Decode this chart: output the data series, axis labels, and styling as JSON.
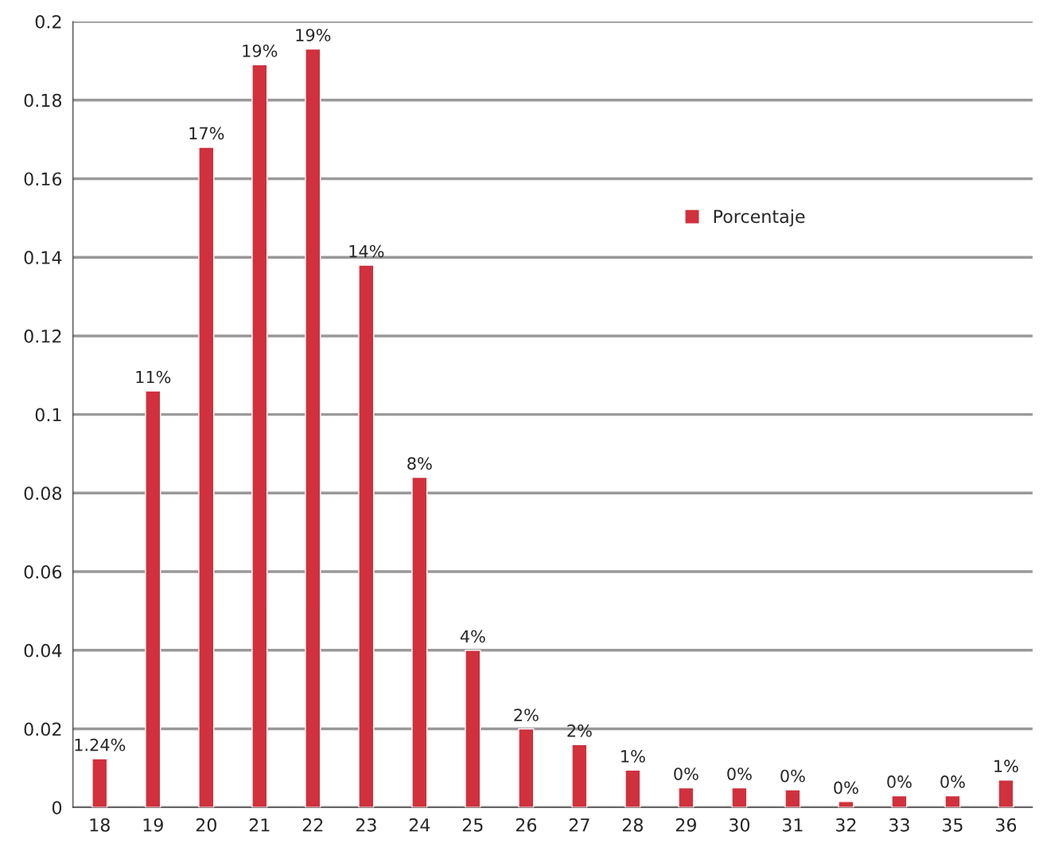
{
  "chart_data": {
    "type": "bar",
    "categories": [
      "18",
      "19",
      "20",
      "21",
      "22",
      "23",
      "24",
      "25",
      "26",
      "27",
      "28",
      "29",
      "30",
      "31",
      "32",
      "33",
      "35",
      "36"
    ],
    "series": [
      {
        "name": "Porcentaje",
        "color": "#d0313c",
        "values": [
          0.0124,
          0.106,
          0.168,
          0.189,
          0.193,
          0.138,
          0.084,
          0.04,
          0.02,
          0.016,
          0.0095,
          0.005,
          0.005,
          0.0045,
          0.0015,
          0.003,
          0.003,
          0.007
        ],
        "value_labels": [
          "1.24%",
          "11%",
          "17%",
          "19%",
          "19%",
          "14%",
          "8%",
          "4%",
          "2%",
          "2%",
          "1%",
          "0%",
          "0%",
          "0%",
          "0%",
          "0%",
          "0%",
          "1%"
        ]
      }
    ],
    "ylim": [
      0,
      0.2
    ],
    "yticks": [
      0,
      0.02,
      0.04,
      0.06,
      0.08,
      0.1,
      0.12,
      0.14,
      0.16,
      0.18,
      0.2
    ],
    "grid": "y",
    "legend": "right"
  }
}
